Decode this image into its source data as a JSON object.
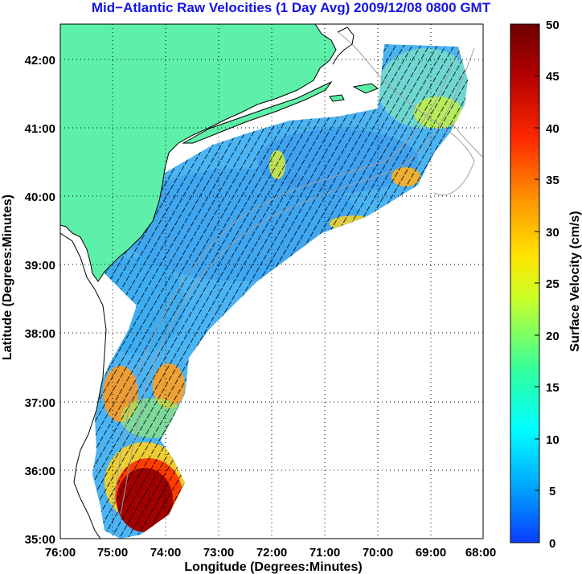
{
  "title": "Mid−Atlantic Raw Velocities (1 Day Avg) 2009/12/08 0800 GMT",
  "map": {
    "xlabel": "Longitude (Degrees:Minutes)",
    "ylabel": "Latitude (Degrees:Minutes)",
    "x_ticks": [
      "76:00",
      "75:00",
      "74:00",
      "73:00",
      "72:00",
      "71:00",
      "70:00",
      "69:00",
      "68:00"
    ],
    "y_ticks": [
      "42:00",
      "41:00",
      "40:00",
      "39:00",
      "38:00",
      "37:00",
      "36:00",
      "35:00"
    ],
    "lon_range": [
      -76,
      -68
    ],
    "lat_range": [
      35,
      42.5
    ],
    "grid": "dotted",
    "land_color": "#5cf0a8",
    "ocean_color": "#ffffff",
    "vector_color": "#000000"
  },
  "colorbar": {
    "label": "Surface Velocity (cm/s)",
    "ticks": [
      "50",
      "45",
      "40",
      "35",
      "30",
      "25",
      "20",
      "15",
      "10",
      "5",
      "0"
    ],
    "range": [
      0,
      50
    ],
    "colormap": [
      "#0a3cff",
      "#00a8ff",
      "#00ffff",
      "#30ffa0",
      "#c8ff28",
      "#ffe600",
      "#ff9600",
      "#ff2800",
      "#b40000",
      "#6e0000"
    ]
  }
}
